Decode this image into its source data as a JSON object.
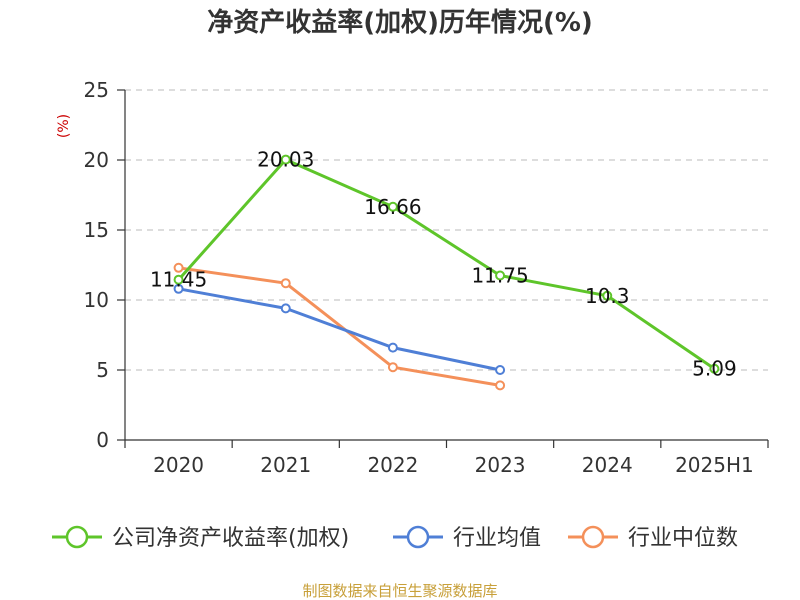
{
  "colors": {
    "series_1": "#5ec52a",
    "series_2": "#4f7fd6",
    "series_3": "#f4905a",
    "axis": "#333333",
    "grid": "#bbbbbb",
    "unit": "#cc0000",
    "source": "#c8a03a"
  },
  "source_note": "制图数据来自恒生聚源数据库",
  "chart_data": {
    "type": "line",
    "title": "净资产收益率(加权)历年情况(%)",
    "ylabel": "(%)",
    "categories": [
      "2020",
      "2021",
      "2022",
      "2023",
      "2024",
      "2025H1"
    ],
    "ylim": [
      0,
      25
    ],
    "yticks": [
      0,
      5,
      10,
      15,
      20,
      25
    ],
    "grid": true,
    "legend_position": "bottom",
    "series": [
      {
        "name": "公司净资产收益率(加权)",
        "values": [
          11.45,
          20.03,
          16.66,
          11.75,
          10.3,
          5.09
        ],
        "labels": [
          "11.45",
          "20.03",
          "16.66",
          "11.75",
          "10.3",
          "5.09"
        ]
      },
      {
        "name": "行业均值",
        "values": [
          10.8,
          9.4,
          6.6,
          5.0,
          null,
          null
        ]
      },
      {
        "name": "行业中位数",
        "values": [
          12.3,
          11.2,
          5.2,
          3.9,
          null,
          null
        ]
      }
    ]
  }
}
